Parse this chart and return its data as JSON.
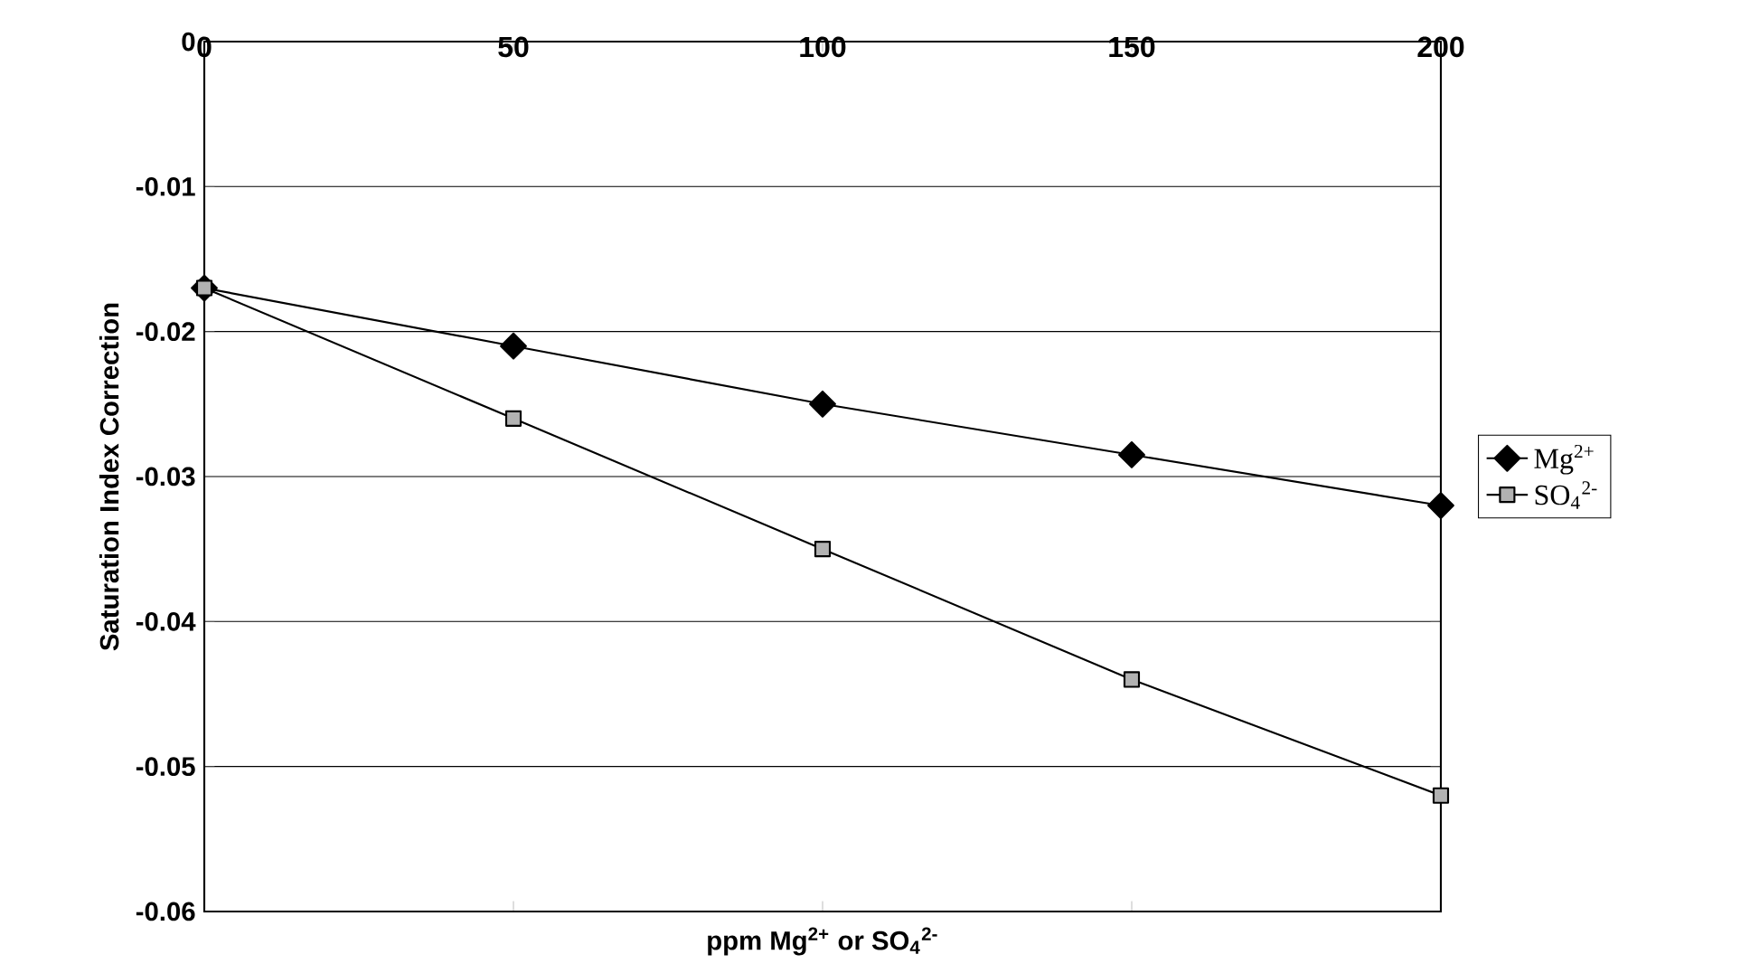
{
  "chart_data": {
    "type": "line",
    "xlabel": "ppm Mg$^{2+}$ or SO$_{4}$$^{2-}$",
    "ylabel": "Saturation Index Correction",
    "x": [
      0,
      50,
      100,
      150,
      200
    ],
    "series": [
      {
        "name": "Mg$^{2+}$",
        "color": "#000000",
        "marker": "diamond",
        "values": [
          -0.017,
          -0.021,
          -0.025,
          -0.0285,
          -0.032
        ]
      },
      {
        "name": "SO$_{4}$$^{2-}$",
        "color": "#000000",
        "marker": "square",
        "values": [
          -0.017,
          -0.026,
          -0.035,
          -0.044,
          -0.052
        ]
      }
    ],
    "xlim": [
      0,
      200
    ],
    "xticks": [
      0,
      50,
      100,
      150,
      200
    ],
    "ylim": [
      -0.06,
      0
    ],
    "yticks": [
      -0.06,
      -0.05,
      -0.04,
      -0.03,
      -0.02,
      -0.01,
      0
    ],
    "grid": "y",
    "legend": "right",
    "line_style": "solid"
  }
}
